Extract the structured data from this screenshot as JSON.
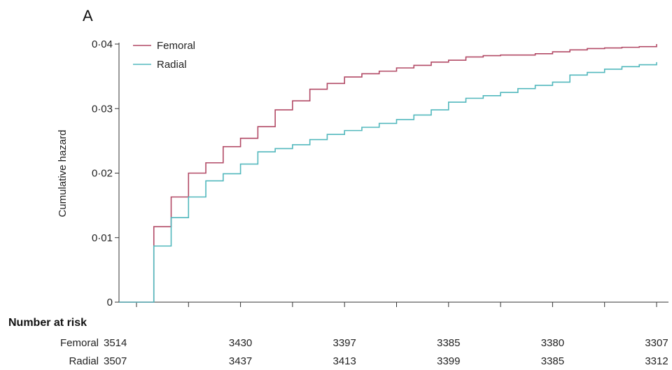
{
  "chart_data": {
    "type": "line",
    "step": true,
    "panel_label": "A",
    "ylabel": "Cumulative hazard",
    "xlabel": "",
    "ylim": [
      0,
      0.04
    ],
    "yticks": [
      0,
      0.01,
      0.02,
      0.03,
      0.04
    ],
    "ytick_labels": [
      "0",
      "0·01",
      "0·02",
      "0·03",
      "0·04"
    ],
    "xlim": [
      0,
      30
    ],
    "xticks": [
      0,
      3,
      6,
      9,
      12,
      15,
      18,
      21,
      24,
      27,
      30
    ],
    "grid": false,
    "legend_position": "top-left",
    "series": [
      {
        "name": "Femoral",
        "color": "#b24a66",
        "x": [
          0,
          1,
          2,
          3,
          4,
          5,
          6,
          7,
          8,
          9,
          10,
          11,
          12,
          13,
          14,
          15,
          16,
          17,
          18,
          19,
          20,
          21,
          22,
          23,
          24,
          25,
          26,
          27,
          28,
          29,
          30
        ],
        "y": [
          0,
          0.0117,
          0.0163,
          0.02,
          0.0216,
          0.0241,
          0.0254,
          0.0272,
          0.0298,
          0.0312,
          0.033,
          0.0339,
          0.0349,
          0.0354,
          0.0358,
          0.0363,
          0.0367,
          0.0372,
          0.0375,
          0.038,
          0.0382,
          0.0383,
          0.0383,
          0.0385,
          0.0388,
          0.0391,
          0.0393,
          0.0394,
          0.0395,
          0.0396,
          0.04
        ]
      },
      {
        "name": "Radial",
        "color": "#52b8bd",
        "x": [
          0,
          1,
          2,
          3,
          4,
          5,
          6,
          7,
          8,
          9,
          10,
          11,
          12,
          13,
          14,
          15,
          16,
          17,
          18,
          19,
          20,
          21,
          22,
          23,
          24,
          25,
          26,
          27,
          28,
          29,
          30
        ],
        "y": [
          0,
          0.0087,
          0.0131,
          0.0163,
          0.0188,
          0.0199,
          0.0214,
          0.0233,
          0.0238,
          0.0244,
          0.0252,
          0.026,
          0.0266,
          0.0271,
          0.0277,
          0.0283,
          0.029,
          0.0298,
          0.031,
          0.0316,
          0.032,
          0.0325,
          0.0331,
          0.0336,
          0.0341,
          0.0352,
          0.0356,
          0.0361,
          0.0365,
          0.0368,
          0.0372
        ]
      }
    ]
  },
  "risk_table": {
    "title": "Number at risk",
    "rows": [
      {
        "label": "Femoral",
        "values": [
          "3514",
          "3430",
          "3397",
          "3385",
          "3380",
          "3307"
        ]
      },
      {
        "label": "Radial",
        "values": [
          "3507",
          "3437",
          "3413",
          "3399",
          "3385",
          "3312"
        ]
      }
    ]
  }
}
